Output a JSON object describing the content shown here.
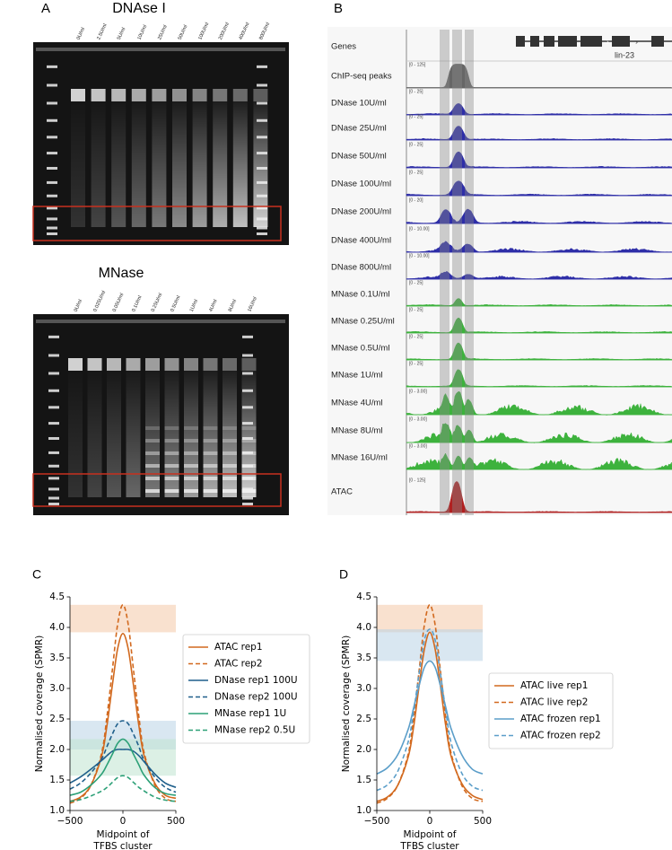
{
  "panel_a": {
    "letter": "A",
    "dnase_title": "DNAse I",
    "dnase_lanes": [
      "0U/ml",
      "2.5U/ml",
      "5U/ml",
      "10U/ml",
      "25U/ml",
      "50U/ml",
      "100U/ml",
      "200U/ml",
      "400U/ml",
      "800U/ml"
    ],
    "mnase_title": "MNase",
    "mnase_lanes": [
      "0U/ml",
      "0.025U/ml",
      "0.05U/ml",
      "0.1U/ml",
      "0.25U/ml",
      "0.5U/ml",
      "1U/ml",
      "4U/ml",
      "8U/ml",
      "16U/ml"
    ]
  },
  "panel_b": {
    "letter": "B",
    "gene_name": "lin-23",
    "tracks": [
      {
        "label": "Genes"
      },
      {
        "label": "ChIP-seq peaks",
        "range": "[0 - 125]"
      },
      {
        "label": "DNase 10U/ml",
        "range": "[0 - 25]"
      },
      {
        "label": "DNase 25U/ml",
        "range": "[0 - 25]"
      },
      {
        "label": "DNase 50U/ml",
        "range": "[0 - 25]"
      },
      {
        "label": "DNase 100U/ml",
        "range": "[0 - 25]"
      },
      {
        "label": "DNase 200U/ml",
        "range": "[0 - 20]"
      },
      {
        "label": "DNase 400U/ml",
        "range": "[0 - 10.00]"
      },
      {
        "label": "DNase 800U/ml",
        "range": "[0 - 10.00]"
      },
      {
        "label": "MNase 0.1U/ml",
        "range": "[0 - 25]"
      },
      {
        "label": "MNase 0.25U/ml",
        "range": "[0 - 25]"
      },
      {
        "label": "MNase 0.5U/ml",
        "range": "[0 - 25]"
      },
      {
        "label": "MNase 1U/ml",
        "range": "[0 - 25]"
      },
      {
        "label": "MNase 4U/ml",
        "range": "[0 - 3.00]"
      },
      {
        "label": "MNase 8U/ml",
        "range": "[0 - 3.00]"
      },
      {
        "label": "MNase 16U/ml",
        "range": "[0 - 3.00]"
      },
      {
        "label": "ATAC",
        "range": "[0 - 125]"
      }
    ]
  },
  "chart_data": [
    {
      "type": "line",
      "letter": "C",
      "ylabel": "Normalised coverage (SPMR)",
      "xlabel": [
        "Midpoint of",
        "TFBS cluster"
      ],
      "x": [
        -500,
        -400,
        -300,
        -200,
        -150,
        -100,
        -50,
        0,
        50,
        100,
        150,
        200,
        300,
        400,
        500
      ],
      "xlim": [
        -500,
        500
      ],
      "xticks": [
        {
          "value": -500,
          "label": "−500"
        },
        0,
        500
      ],
      "ylim": [
        1,
        4.5
      ],
      "yticks": [
        {
          "value": 1,
          "label": "1.0"
        },
        1.5,
        {
          "value": 2,
          "label": "2.0"
        },
        2.5,
        {
          "value": 3,
          "label": "3.0"
        },
        3.5,
        {
          "value": 4,
          "label": "4.0"
        },
        4.5
      ],
      "legend": "right",
      "shaded_ranges": [
        {
          "color": "#f4c9a8",
          "range": [
            3.92,
            4.37
          ]
        },
        {
          "color": "#b9d3e6",
          "range": [
            2.0,
            2.47
          ]
        },
        {
          "color": "#bfe3cf",
          "range": [
            1.57,
            2.17
          ]
        }
      ],
      "series": [
        {
          "name": "ATAC rep1",
          "color": "#d2691e",
          "linestyle": "solid",
          "values": [
            1.15,
            1.22,
            1.42,
            1.9,
            2.4,
            3.05,
            3.65,
            3.9,
            3.65,
            3.05,
            2.4,
            1.9,
            1.45,
            1.25,
            1.2
          ]
        },
        {
          "name": "ATAC rep2",
          "color": "#d2691e",
          "linestyle": "dashed",
          "values": [
            1.12,
            1.2,
            1.42,
            1.95,
            2.55,
            3.3,
            4.05,
            4.37,
            4.05,
            3.3,
            2.55,
            1.95,
            1.42,
            1.2,
            1.15
          ]
        },
        {
          "name": "DNase rep1 100U",
          "color": "#1f5f8b",
          "linestyle": "solid",
          "values": [
            1.45,
            1.55,
            1.68,
            1.82,
            1.9,
            1.97,
            2.0,
            2.0,
            2.0,
            1.97,
            1.9,
            1.8,
            1.6,
            1.45,
            1.38
          ]
        },
        {
          "name": "DNase rep2 100U",
          "color": "#1f5f8b",
          "linestyle": "dashed",
          "values": [
            1.35,
            1.45,
            1.62,
            1.85,
            2.05,
            2.25,
            2.42,
            2.47,
            2.42,
            2.25,
            2.05,
            1.82,
            1.55,
            1.38,
            1.3
          ]
        },
        {
          "name": "MNase rep1 1U",
          "color": "#2ca077",
          "linestyle": "solid",
          "values": [
            1.25,
            1.3,
            1.42,
            1.6,
            1.75,
            1.92,
            2.1,
            2.17,
            2.1,
            1.92,
            1.75,
            1.58,
            1.38,
            1.28,
            1.25
          ]
        },
        {
          "name": "MNase rep2 0.5U",
          "color": "#2ca077",
          "linestyle": "dashed",
          "values": [
            1.15,
            1.18,
            1.24,
            1.32,
            1.38,
            1.46,
            1.54,
            1.57,
            1.54,
            1.46,
            1.38,
            1.32,
            1.22,
            1.17,
            1.15
          ]
        }
      ]
    },
    {
      "type": "line",
      "letter": "D",
      "ylabel": "Normalised coverage (SPMR)",
      "xlabel": [
        "Midpoint of",
        "TFBS cluster"
      ],
      "x": [
        -500,
        -400,
        -300,
        -200,
        -150,
        -100,
        -50,
        0,
        50,
        100,
        150,
        200,
        300,
        400,
        500
      ],
      "xlim": [
        -500,
        500
      ],
      "xticks": [
        {
          "value": -500,
          "label": "−500"
        },
        0,
        500
      ],
      "ylim": [
        1,
        4.5
      ],
      "yticks": [
        {
          "value": 1,
          "label": "1.0"
        },
        1.5,
        {
          "value": 2,
          "label": "2.0"
        },
        2.5,
        {
          "value": 3,
          "label": "3.0"
        },
        3.5,
        {
          "value": 4,
          "label": "4.0"
        },
        4.5
      ],
      "legend": "right",
      "shaded_ranges": [
        {
          "color": "#f4c9a8",
          "range": [
            3.92,
            4.37
          ]
        },
        {
          "color": "#b9d3e6",
          "range": [
            3.45,
            3.97
          ]
        }
      ],
      "series": [
        {
          "name": "ATAC live rep1",
          "color": "#d2691e",
          "linestyle": "solid",
          "values": [
            1.15,
            1.22,
            1.42,
            1.9,
            2.4,
            3.05,
            3.65,
            3.92,
            3.65,
            3.05,
            2.4,
            1.9,
            1.45,
            1.25,
            1.18
          ]
        },
        {
          "name": "ATAC live rep2",
          "color": "#d2691e",
          "linestyle": "dashed",
          "values": [
            1.12,
            1.2,
            1.42,
            1.95,
            2.55,
            3.3,
            4.05,
            4.37,
            4.05,
            3.3,
            2.55,
            1.95,
            1.42,
            1.2,
            1.15
          ]
        },
        {
          "name": "ATAC frozen rep1",
          "color": "#5b9ec9",
          "linestyle": "solid",
          "values": [
            1.6,
            1.7,
            1.92,
            2.35,
            2.7,
            3.05,
            3.35,
            3.45,
            3.35,
            3.05,
            2.7,
            2.35,
            1.92,
            1.68,
            1.6
          ]
        },
        {
          "name": "ATAC frozen rep2",
          "color": "#5b9ec9",
          "linestyle": "dashed",
          "values": [
            1.33,
            1.42,
            1.65,
            2.15,
            2.65,
            3.25,
            3.8,
            3.97,
            3.8,
            3.25,
            2.65,
            2.12,
            1.62,
            1.4,
            1.33
          ]
        }
      ]
    }
  ]
}
